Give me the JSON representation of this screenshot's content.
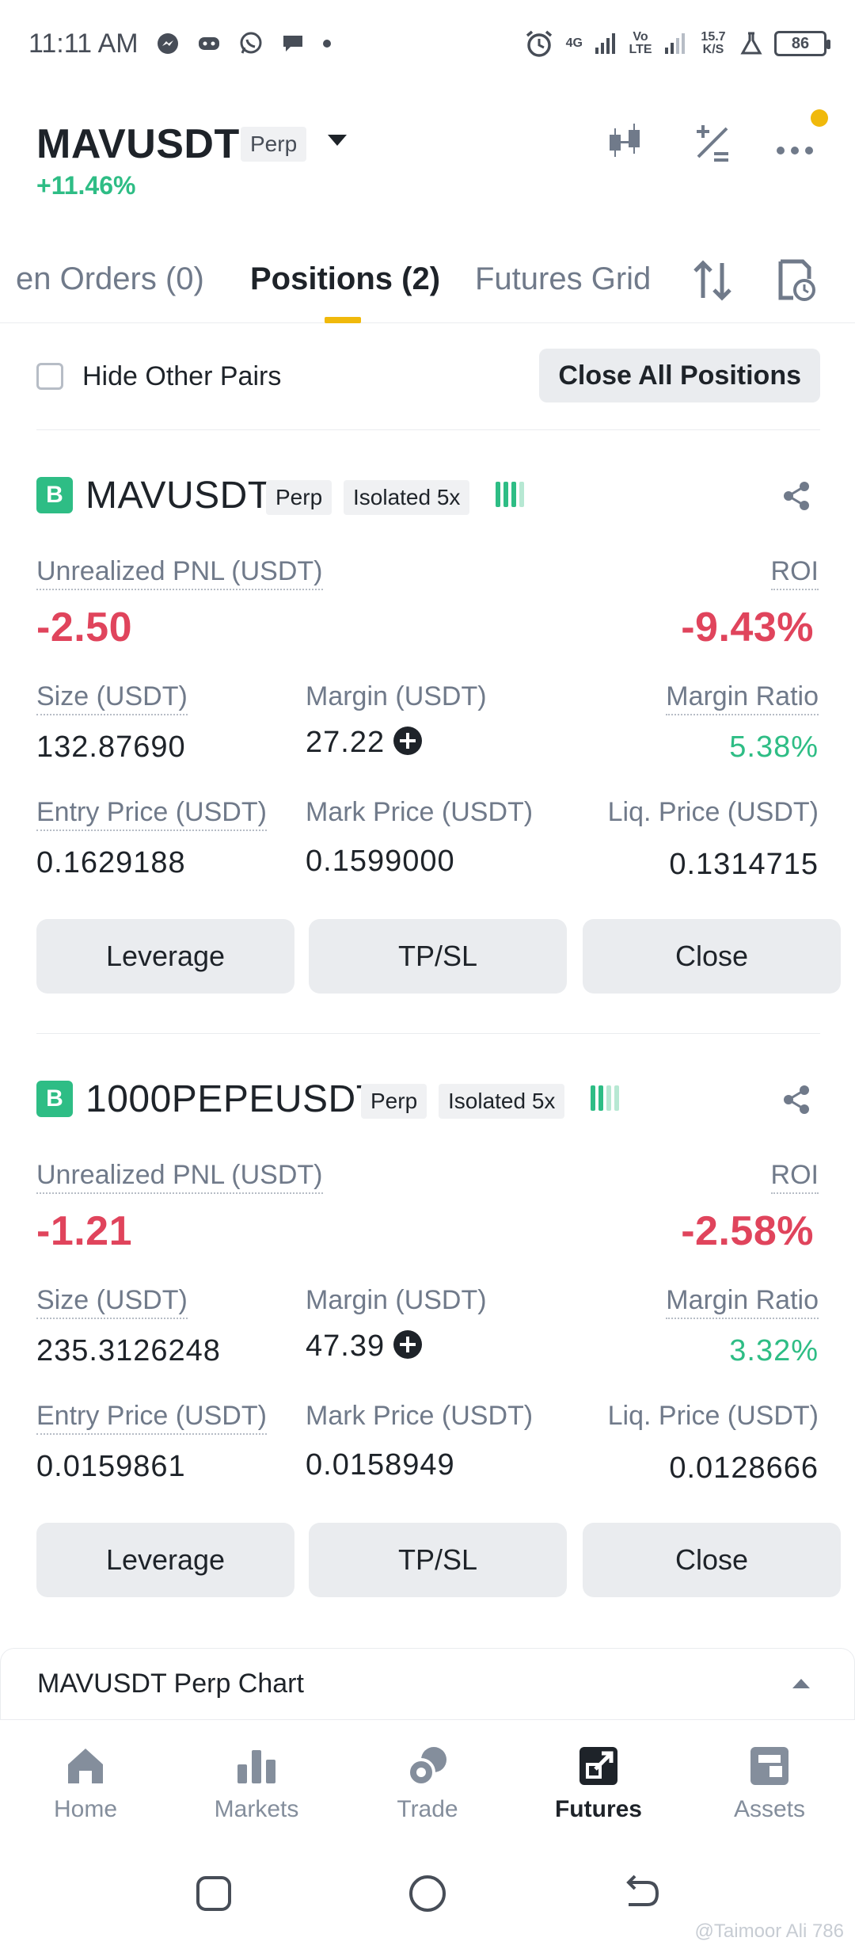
{
  "status_bar": {
    "time": "11:11 AM",
    "network_left": "4G",
    "network_volte": "Vo LTE",
    "net_speed": "15.7 K/S",
    "battery": "86"
  },
  "header": {
    "symbol": "MAVUSDT",
    "tag": "Perp",
    "change": "+11.46%"
  },
  "tabs": {
    "items": [
      "en Orders (0)",
      "Positions (2)",
      "Futures Grid"
    ],
    "active_index": 1
  },
  "filter": {
    "hide_pairs_label": "Hide Other Pairs",
    "close_all_label": "Close All Positions"
  },
  "labels": {
    "badge": "B",
    "perp": "Perp",
    "unrealized_pnl": "Unrealized PNL (USDT)",
    "roi": "ROI",
    "size": "Size (USDT)",
    "margin": "Margin (USDT)",
    "margin_ratio": "Margin Ratio",
    "entry_price": "Entry Price (USDT)",
    "mark_price": "Mark Price (USDT)",
    "liq_price": "Liq. Price (USDT)",
    "leverage_btn": "Leverage",
    "tpsl_btn": "TP/SL",
    "close_btn": "Close"
  },
  "positions": [
    {
      "symbol": "MAVUSDT",
      "mode": "Isolated 5x",
      "pnl": "-2.50",
      "roi": "-9.43%",
      "size": "132.87690",
      "margin": "27.22",
      "margin_ratio": "5.38%",
      "entry_price": "0.1629188",
      "mark_price": "0.1599000",
      "liq_price": "0.1314715"
    },
    {
      "symbol": "1000PEPEUSDT",
      "mode": "Isolated 5x",
      "pnl": "-1.21",
      "roi": "-2.58%",
      "size": "235.3126248",
      "margin": "47.39",
      "margin_ratio": "3.32%",
      "entry_price": "0.0159861",
      "mark_price": "0.0158949",
      "liq_price": "0.0128666"
    }
  ],
  "chart_panel": {
    "title": "MAVUSDT Perp Chart"
  },
  "bottom_nav": {
    "items": [
      "Home",
      "Markets",
      "Trade",
      "Futures",
      "Assets"
    ],
    "active_index": 3
  },
  "watermark": "@Taimoor Ali 786",
  "colors": {
    "accent": "#f0b90b",
    "positive": "#2ebd85",
    "negative": "#e0445c",
    "text_primary": "#1e2329",
    "text_secondary": "#707a8a"
  }
}
